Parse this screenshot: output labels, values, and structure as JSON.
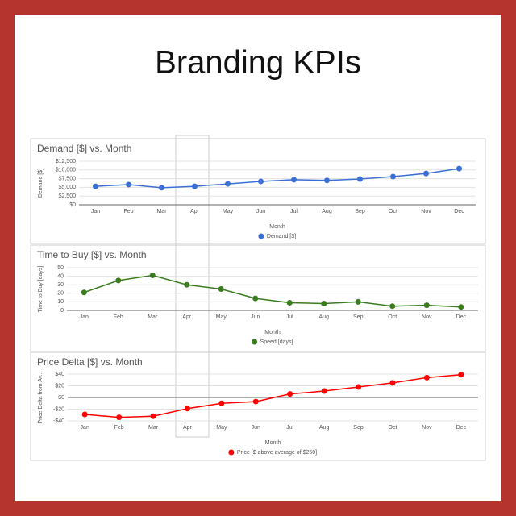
{
  "title": "Branding KPIs",
  "chart_data": [
    {
      "type": "line",
      "title": "Demand [$] vs. Month",
      "x_label": "Month",
      "y_label": "Demand [$]",
      "categories": [
        "Jan",
        "Feb",
        "Mar",
        "Apr",
        "May",
        "Jun",
        "Jul",
        "Aug",
        "Sep",
        "Oct",
        "Nov",
        "Dec"
      ],
      "series": [
        {
          "name": "Demand [$]",
          "color": "#3c6fd6",
          "values": [
            5300,
            5800,
            4900,
            5300,
            6000,
            6700,
            7200,
            7000,
            7400,
            8100,
            9000,
            10400
          ]
        }
      ],
      "ylim": [
        0,
        12500
      ],
      "yticks": [
        {
          "value": 0,
          "label": "$0"
        },
        {
          "value": 2500,
          "label": "$2,500"
        },
        {
          "value": 5000,
          "label": "$5,000"
        },
        {
          "value": 7500,
          "label": "$7,500"
        },
        {
          "value": 10000,
          "label": "$10,000"
        },
        {
          "value": 12500,
          "label": "$12,500"
        }
      ],
      "grid": true
    },
    {
      "type": "line",
      "title": "Time to Buy [$] vs. Month",
      "x_label": "Month",
      "y_label": "Time to Buy [days]",
      "categories": [
        "Jan",
        "Feb",
        "Mar",
        "Apr",
        "May",
        "Jun",
        "Jul",
        "Aug",
        "Sep",
        "Oct",
        "Nov",
        "Dec"
      ],
      "series": [
        {
          "name": "Speed [days]",
          "color": "#3a7d1f",
          "values": [
            21,
            35,
            41,
            30,
            25,
            14,
            9,
            8,
            10,
            5,
            6,
            4
          ]
        }
      ],
      "ylim": [
        0,
        50
      ],
      "yticks": [
        0,
        10,
        20,
        30,
        40,
        50
      ],
      "grid": true
    },
    {
      "type": "line",
      "title": "Price Delta [$] vs. Month",
      "x_label": "Month",
      "y_label": "Price Delta from Av...",
      "categories": [
        "Jan",
        "Feb",
        "Mar",
        "Apr",
        "May",
        "Jun",
        "Jul",
        "Aug",
        "Sep",
        "Oct",
        "Nov",
        "Dec"
      ],
      "series": [
        {
          "name": "Price [$ above average of $250]",
          "color": "#ff0000",
          "values": [
            -29,
            -34,
            -32,
            -19,
            -10,
            -7,
            6,
            11,
            18,
            25,
            34,
            39
          ]
        }
      ],
      "ylim": [
        -40,
        40
      ],
      "yticks": [
        {
          "value": -40,
          "label": "-$40"
        },
        {
          "value": -20,
          "label": "-$20"
        },
        {
          "value": 0,
          "label": "$0"
        },
        {
          "value": 20,
          "label": "$20"
        },
        {
          "value": 40,
          "label": "$40"
        }
      ],
      "grid": true
    }
  ]
}
